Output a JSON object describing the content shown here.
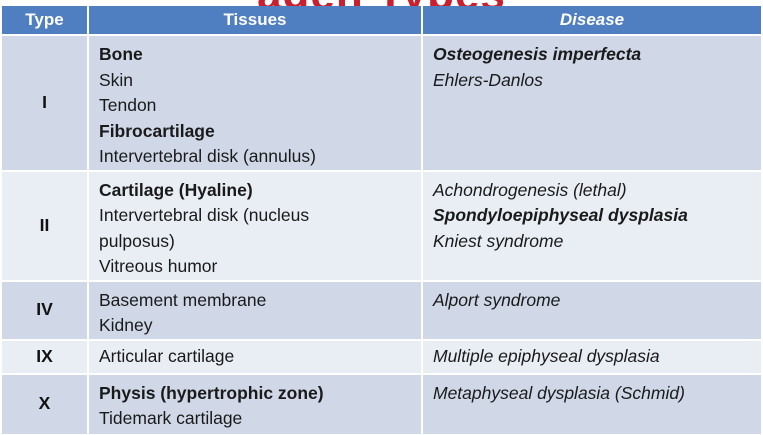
{
  "slide": {
    "title_fragment": "agen Types"
  },
  "table": {
    "headers": {
      "type": "Type",
      "tissues": "Tissues",
      "disease": "Disease"
    },
    "rows": [
      {
        "type": "I",
        "tissues": [
          "Bone",
          "Skin",
          "Tendon",
          "Fibrocartilage",
          "Intervertebral disk (annulus)"
        ],
        "diseases": [
          "Osteogenesis imperfecta",
          "Ehlers-Danlos"
        ]
      },
      {
        "type": "II",
        "tissues": [
          "Cartilage (Hyaline)",
          "Intervertebral disk (nucleus",
          "pulposus)",
          "Vitreous humor"
        ],
        "diseases": [
          "Achondrogenesis (lethal)",
          "Spondyloepiphyseal dysplasia",
          "Kniest syndrome"
        ]
      },
      {
        "type": "IV",
        "tissues": [
          "Basement membrane",
          "Kidney"
        ],
        "diseases": [
          "Alport syndrome"
        ]
      },
      {
        "type": "IX",
        "tissues": [
          "Articular cartilage"
        ],
        "diseases": [
          "Multiple epiphyseal dysplasia"
        ]
      },
      {
        "type": "X",
        "tissues": [
          "Physis (hypertrophic zone)",
          "Tidemark cartilage"
        ],
        "diseases": [
          "Metaphyseal dysplasia (Schmid)"
        ]
      }
    ]
  },
  "colors": {
    "header_bg": "#4f7fc0",
    "row_dark": "#d0d8e8",
    "row_light": "#e9edf4",
    "title_red": "#c8202f"
  }
}
